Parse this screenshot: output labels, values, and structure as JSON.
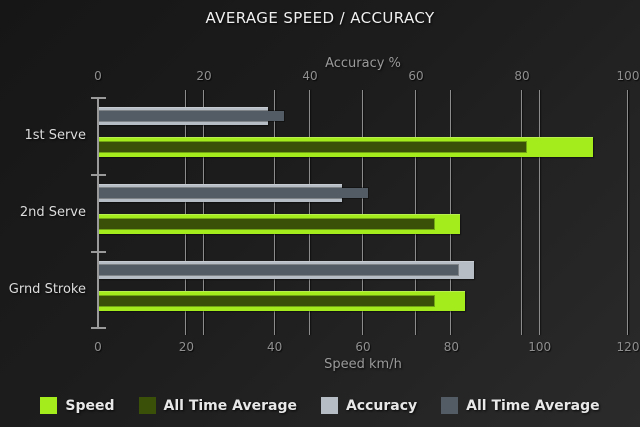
{
  "title": "AVERAGE SPEED / ACCURACY",
  "palette": {
    "background_dark": "#161616",
    "background_light": "#2b2b2b",
    "gridline": "#8c8c8c",
    "axis": "#9a9a9a",
    "tick_text": "#8f8f8f",
    "category_text": "#dcdcdc",
    "title_text": "#f0f0f0",
    "legend_text": "#e8e8e8"
  },
  "chart_data": {
    "type": "bar",
    "orientation": "horizontal",
    "title": "AVERAGE SPEED / ACCURACY",
    "grid": true,
    "categories": [
      "1st Serve",
      "2nd Serve",
      "Grnd Stroke"
    ],
    "top_axis": {
      "label": "Accuracy %",
      "range": [
        0,
        100
      ],
      "ticks": [
        0,
        20,
        40,
        60,
        80,
        100
      ]
    },
    "bottom_axis": {
      "label": "Speed km/h",
      "range": [
        0,
        120
      ],
      "ticks": [
        0,
        20,
        40,
        60,
        80,
        100,
        120
      ]
    },
    "series": [
      {
        "name": "Speed",
        "axis": "bottom",
        "role": "base",
        "color": "#a4ec1c",
        "values": [
          112,
          82,
          83
        ]
      },
      {
        "name": "All Time Average",
        "axis": "bottom",
        "role": "overlay",
        "color": "#3a4f07",
        "values": [
          97,
          76,
          76
        ]
      },
      {
        "name": "Accuracy",
        "axis": "top",
        "role": "base",
        "color": "#b7bdc4",
        "values": [
          32,
          46,
          71
        ]
      },
      {
        "name": "All Time Average",
        "axis": "top",
        "role": "overlay",
        "color": "#535b64",
        "values": [
          35,
          51,
          68
        ]
      }
    ],
    "legend": {
      "position": "bottom",
      "entries": [
        "Speed",
        "All Time Average",
        "Accuracy",
        "All Time Average"
      ]
    }
  }
}
